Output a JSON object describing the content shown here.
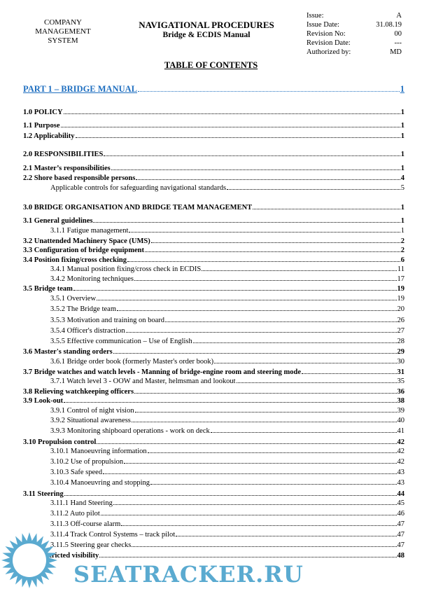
{
  "header": {
    "company": [
      "COMPANY",
      "MANAGEMENT",
      "SYSTEM"
    ],
    "title": "NAVIGATIONAL PROCEDURES",
    "subtitle": "Bridge & ECDIS Manual",
    "meta": [
      {
        "label": "Issue:",
        "value": "A"
      },
      {
        "label": "Issue Date:",
        "value": "31.08.19"
      },
      {
        "label": "Revision No:",
        "value": "00"
      },
      {
        "label": "Revision Date:",
        "value": "---"
      },
      {
        "label": "Authorized by:",
        "value": "MD"
      }
    ]
  },
  "toc_title": "TABLE OF CONTENTS",
  "link_color": "#1f6fc0",
  "toc": [
    {
      "level": "part",
      "text": "PART 1 – BRIDGE MANUAL",
      "page": "1"
    },
    {
      "level": "bold",
      "text": "1.0 POLICY",
      "page": "1"
    },
    {
      "level": "bold",
      "text": "1.1 Purpose",
      "page": "1"
    },
    {
      "level": "bold",
      "text": "1.2 Applicability",
      "page": "1"
    },
    {
      "level": "bold",
      "text": "2.0 RESPONSIBILITIES",
      "page": "1"
    },
    {
      "level": "bold",
      "text": "2.1 Master’s responsibilities",
      "page": "1"
    },
    {
      "level": "bold",
      "text": "2.2 Shore based responsible persons",
      "page": "4"
    },
    {
      "level": "sub",
      "text": "Applicable controls for safeguarding navigational standards",
      "page": "5"
    },
    {
      "level": "bold",
      "text": "3.0 BRIDGE ORGANISATION AND BRIDGE TEAM MANAGEMENT",
      "page": "1"
    },
    {
      "level": "bold",
      "text": "3.1 General guidelines",
      "page": "1"
    },
    {
      "level": "sub",
      "text": "3.1.1 Fatigue management",
      "page": "1"
    },
    {
      "level": "bold",
      "text": "3.2 Unattended Machinery Space (UMS)",
      "page": "2"
    },
    {
      "level": "bold",
      "text": "3.3 Configuration of bridge equipment",
      "page": "2"
    },
    {
      "level": "bold",
      "text": "3.4 Position fixing/cross checking",
      "page": "6"
    },
    {
      "level": "sub",
      "text": "3.4.1 Manual position fixing/cross check in ECDIS",
      "page": "11"
    },
    {
      "level": "sub",
      "text": "3.4.2 Monitoring techniques",
      "page": "17"
    },
    {
      "level": "bold",
      "text": "3.5 Bridge team",
      "page": "19"
    },
    {
      "level": "sub",
      "text": "3.5.1 Overview",
      "page": "19"
    },
    {
      "level": "sub",
      "text": "3.5.2 The Bridge team",
      "page": "20"
    },
    {
      "level": "sub",
      "text": "3.5.3 Motivation and training on board",
      "page": "26"
    },
    {
      "level": "sub",
      "text": "3.5.4 Officer's distraction",
      "page": "27"
    },
    {
      "level": "sub",
      "text": "3.5.5 Effective communication – Use of English",
      "page": "28"
    },
    {
      "level": "bold",
      "text": "3.6 Master's standing orders",
      "page": "29"
    },
    {
      "level": "sub",
      "text": "3.6.1 Bridge order book (formerly Master's order book)",
      "page": "30"
    },
    {
      "level": "bold",
      "text": "3.7 Bridge watches and watch levels - Manning of bridge-engine room and steering mode",
      "page": "31"
    },
    {
      "level": "sub",
      "text": "3.7.1 Watch level 3 - OOW and Master, helmsman and lookout",
      "page": "35"
    },
    {
      "level": "bold",
      "text": "3.8 Relieving watchkeeping officers",
      "page": "36"
    },
    {
      "level": "bold",
      "text": "3.9 Look-out",
      "page": "38"
    },
    {
      "level": "sub",
      "text": "3.9.1 Control of night vision",
      "page": "39"
    },
    {
      "level": "sub",
      "text": "3.9.2 Situational awareness",
      "page": "40"
    },
    {
      "level": "sub",
      "text": "3.9.3 Monitoring shipboard operations - work on deck",
      "page": "41"
    },
    {
      "level": "bold",
      "text": "3.10 Propulsion control",
      "page": "42"
    },
    {
      "level": "sub",
      "text": "3.10.1 Manoeuvring information",
      "page": "42"
    },
    {
      "level": "sub",
      "text": "3.10.2 Use of propulsion",
      "page": "42"
    },
    {
      "level": "sub",
      "text": "3.10.3 Safe speed",
      "page": "43"
    },
    {
      "level": "sub",
      "text": "3.10.4 Manoeuvring and stopping",
      "page": "43"
    },
    {
      "level": "bold",
      "text": "3.11 Steering",
      "page": "44"
    },
    {
      "level": "sub",
      "text": "3.11.1 Hand Steering",
      "page": "45"
    },
    {
      "level": "sub",
      "text": "3.11.2 Auto pilot",
      "page": "46"
    },
    {
      "level": "sub",
      "text": "3.11.3 Off-course alarm",
      "page": "47"
    },
    {
      "level": "sub",
      "text": "3.11.4 Track Control Systems – track pilot",
      "page": "47"
    },
    {
      "level": "sub",
      "text": "3.11.5 Steering gear checks",
      "page": "47"
    },
    {
      "level": "bold",
      "text": "3.12 Restricted visibility",
      "page": "48"
    }
  ],
  "watermark": {
    "text": "SEATRACKER.RU",
    "color": "#5aaad0"
  }
}
